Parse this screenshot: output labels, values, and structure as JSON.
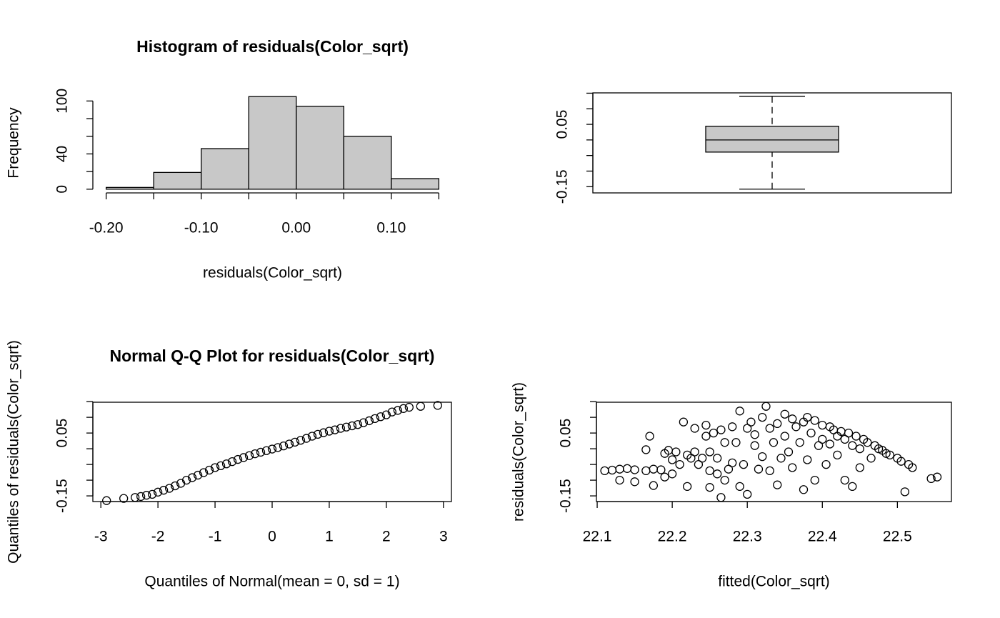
{
  "chart_data": [
    {
      "type": "histogram",
      "title": "Histogram of residuals(Color_sqrt)",
      "xlabel": "residuals(Color_sqrt)",
      "ylabel": "Frequency",
      "bins": [
        -0.2,
        -0.15,
        -0.1,
        -0.05,
        0,
        0.05,
        0.1,
        0.15
      ],
      "counts": [
        2,
        19,
        46,
        105,
        94,
        60,
        12
      ],
      "color": "#c8c8c8",
      "xlim": [
        -0.214,
        0.164
      ],
      "ylim": [
        -4.2,
        109.2
      ],
      "xticks": [
        {
          "value": -0.2,
          "label": "-0.20"
        },
        {
          "value": -0.1,
          "label": "-0.10"
        },
        {
          "value": 0,
          "label": "0.00"
        },
        {
          "value": 0.1,
          "label": "0.10"
        }
      ],
      "xminor_ticks": [
        -0.15,
        -0.05,
        0.05,
        0.15
      ],
      "yticks": [
        0,
        40,
        100
      ],
      "yminor_ticks": [
        20,
        60,
        80
      ]
    },
    {
      "type": "boxplot",
      "min": -0.158,
      "q1": -0.039,
      "median": 0,
      "q3": 0.044,
      "max": 0.14,
      "color": "#c8c8c8",
      "ylim": [
        -0.17,
        0.151
      ],
      "yticks": [
        -0.15,
        0.05
      ],
      "yminor_ticks": [
        -0.1,
        -0.05,
        0,
        0.1,
        0.15
      ]
    },
    {
      "type": "scatter",
      "title": "Normal Q-Q Plot for residuals(Color_sqrt)",
      "xlabel": "Quantiles of Normal(mean = 0, sd = 1)",
      "ylabel": "Quantiles of residuals(Color_sqrt)",
      "x": [
        -2.9,
        -2.6,
        -2.4,
        -2.3,
        -2.2,
        -2.1,
        -2.0,
        -1.9,
        -1.8,
        -1.7,
        -1.6,
        -1.5,
        -1.4,
        -1.3,
        -1.2,
        -1.1,
        -1.0,
        -0.9,
        -0.8,
        -0.7,
        -0.6,
        -0.5,
        -0.4,
        -0.3,
        -0.2,
        -0.1,
        0,
        0.1,
        0.2,
        0.3,
        0.4,
        0.5,
        0.6,
        0.7,
        0.8,
        0.9,
        1.0,
        1.1,
        1.2,
        1.3,
        1.4,
        1.5,
        1.6,
        1.7,
        1.8,
        1.9,
        2.0,
        2.1,
        2.2,
        2.3,
        2.4,
        2.6,
        2.9
      ],
      "y": [
        -0.165,
        -0.158,
        -0.155,
        -0.152,
        -0.148,
        -0.145,
        -0.138,
        -0.132,
        -0.126,
        -0.118,
        -0.11,
        -0.1,
        -0.092,
        -0.084,
        -0.076,
        -0.068,
        -0.06,
        -0.054,
        -0.048,
        -0.041,
        -0.034,
        -0.028,
        -0.022,
        -0.016,
        -0.011,
        -0.006,
        -0.001,
        0.004,
        0.009,
        0.015,
        0.021,
        0.027,
        0.033,
        0.04,
        0.046,
        0.051,
        0.056,
        0.06,
        0.065,
        0.069,
        0.073,
        0.077,
        0.083,
        0.089,
        0.096,
        0.102,
        0.108,
        0.117,
        0.122,
        0.128,
        0.132,
        0.135,
        0.138
      ],
      "xlim": [
        -3.14,
        3.14
      ],
      "ylim": [
        -0.168,
        0.148
      ],
      "xticks": [
        -3,
        -2,
        -1,
        0,
        1,
        2,
        3
      ],
      "yticks": [
        -0.15,
        0.05
      ],
      "yminor_ticks": [
        -0.1,
        -0.05,
        0,
        0.1,
        0.15
      ]
    },
    {
      "type": "scatter",
      "xlabel": "fitted(Color_sqrt)",
      "ylabel": "residuals(Color_sqrt)",
      "x": [
        22.11,
        22.12,
        22.13,
        22.13,
        22.14,
        22.15,
        22.15,
        22.165,
        22.165,
        22.17,
        22.175,
        22.175,
        22.185,
        22.19,
        22.19,
        22.195,
        22.2,
        22.2,
        22.205,
        22.21,
        22.215,
        22.22,
        22.22,
        22.225,
        22.23,
        22.23,
        22.235,
        22.24,
        22.245,
        22.245,
        22.25,
        22.25,
        22.25,
        22.255,
        22.26,
        22.26,
        22.265,
        22.265,
        22.27,
        22.27,
        22.275,
        22.28,
        22.28,
        22.285,
        22.29,
        22.29,
        22.295,
        22.3,
        22.3,
        22.305,
        22.31,
        22.31,
        22.315,
        22.32,
        22.32,
        22.325,
        22.33,
        22.33,
        22.335,
        22.34,
        22.34,
        22.345,
        22.35,
        22.35,
        22.355,
        22.36,
        22.36,
        22.365,
        22.37,
        22.375,
        22.375,
        22.38,
        22.38,
        22.385,
        22.39,
        22.39,
        22.395,
        22.4,
        22.4,
        22.405,
        22.41,
        22.41,
        22.415,
        22.42,
        22.42,
        22.425,
        22.43,
        22.43,
        22.435,
        22.44,
        22.44,
        22.445,
        22.45,
        22.45,
        22.455,
        22.46,
        22.465,
        22.47,
        22.475,
        22.48,
        22.485,
        22.49,
        22.5,
        22.505,
        22.51,
        22.515,
        22.52,
        22.545,
        22.553
      ],
      "y": [
        -0.07,
        -0.068,
        -0.065,
        -0.1,
        -0.063,
        -0.067,
        -0.105,
        -0.07,
        -0.003,
        0.04,
        -0.065,
        -0.117,
        -0.067,
        -0.09,
        -0.015,
        -0.005,
        -0.035,
        -0.08,
        -0.01,
        -0.05,
        0.085,
        -0.12,
        -0.02,
        -0.03,
        -0.01,
        0.065,
        -0.05,
        -0.03,
        0.075,
        0.04,
        -0.123,
        -0.07,
        -0.01,
        0.05,
        -0.03,
        -0.08,
        0.06,
        -0.155,
        -0.1,
        0.02,
        -0.065,
        0.07,
        -0.045,
        0.02,
        0.12,
        -0.12,
        -0.05,
        0.065,
        -0.145,
        0.085,
        0.045,
        0.01,
        -0.065,
        0.1,
        -0.025,
        0.135,
        0.065,
        -0.07,
        0.02,
        0.08,
        -0.115,
        -0.03,
        0.11,
        0.04,
        -0.01,
        0.095,
        -0.06,
        0.07,
        0.02,
        0.085,
        -0.13,
        0.1,
        -0.035,
        0.05,
        0.09,
        -0.1,
        0.01,
        0.075,
        0.03,
        -0.05,
        0.07,
        0.015,
        0.06,
        0.04,
        -0.02,
        0.055,
        -0.1,
        0.03,
        0.05,
        0.01,
        -0.12,
        0.04,
        0.0,
        -0.06,
        0.03,
        0.02,
        -0.03,
        0.01,
        0.0,
        -0.005,
        -0.015,
        -0.02,
        -0.03,
        -0.04,
        -0.137,
        -0.05,
        -0.06,
        -0.095,
        -0.09
      ],
      "xlim": [
        22.099,
        22.572
      ],
      "ylim": [
        -0.168,
        0.148
      ],
      "xticks": [
        22.1,
        22.2,
        22.3,
        22.4,
        22.5
      ],
      "yticks": [
        -0.15,
        0.05
      ],
      "yminor_ticks": [
        -0.1,
        -0.05,
        0,
        0.1,
        0.15
      ]
    }
  ]
}
